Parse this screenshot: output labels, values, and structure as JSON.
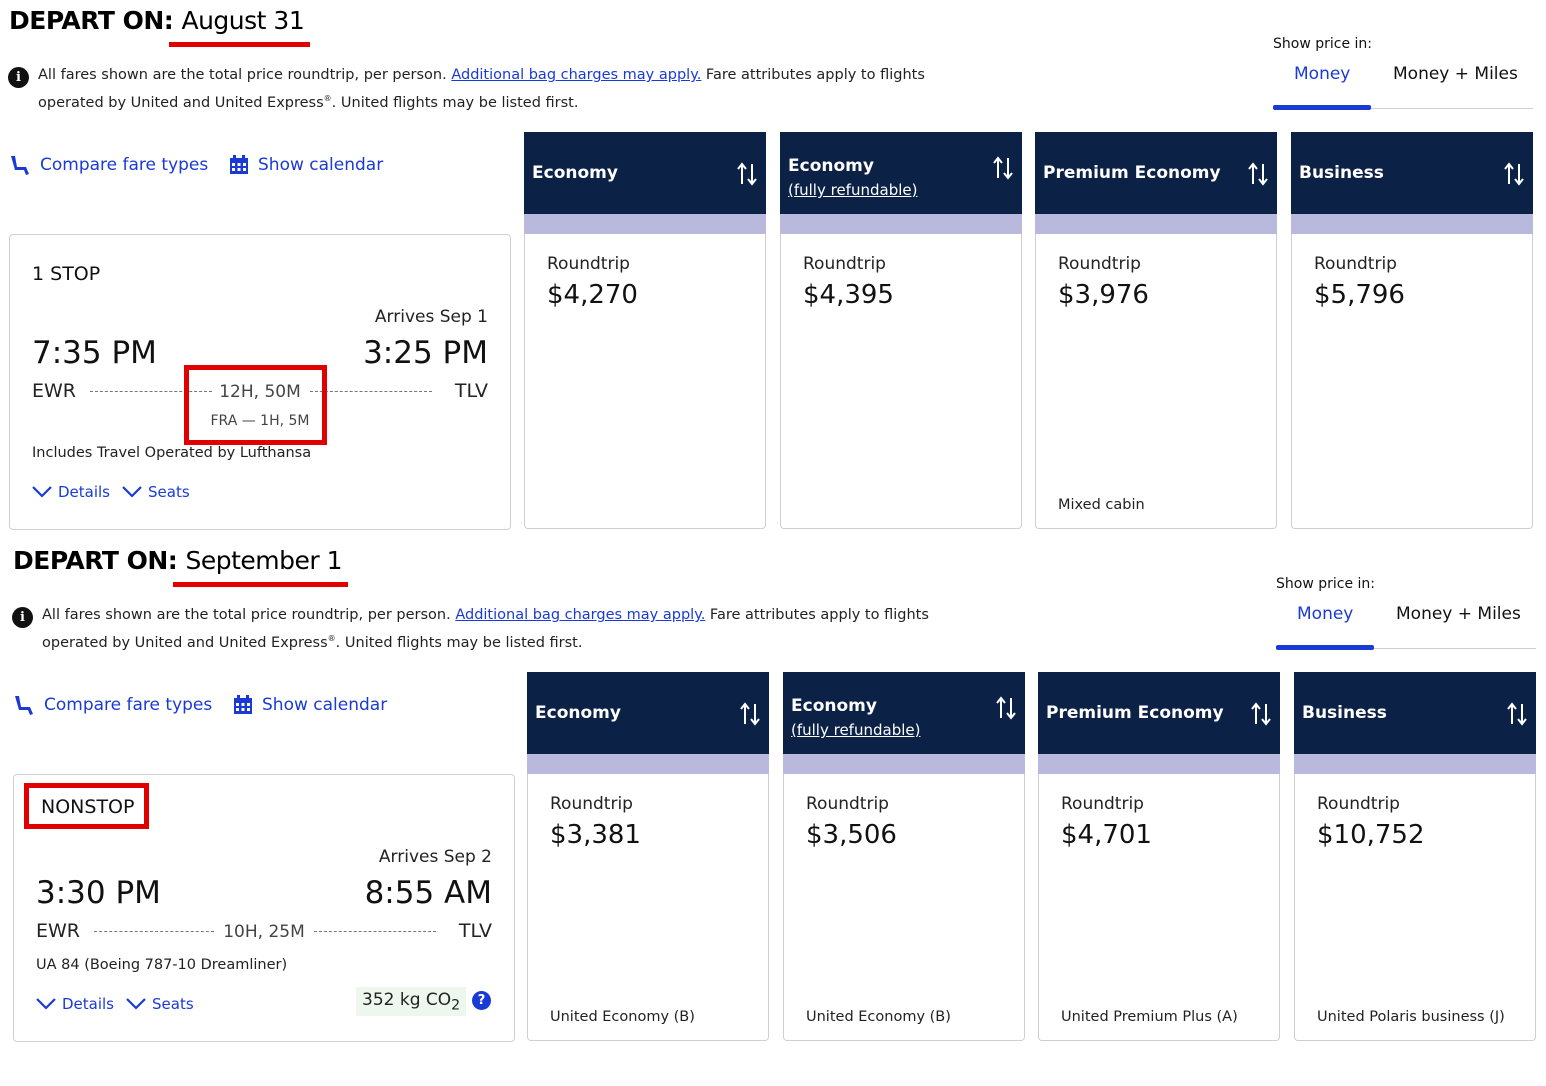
{
  "sections": [
    {
      "depart_label": "DEPART ON:",
      "depart_date": "August 31",
      "info": {
        "text1": "All fares shown are the total price roundtrip, per person. ",
        "link": "Additional bag charges may apply.",
        "text2": " Fare attributes apply to flights operated by United and United Express",
        "reg": "®",
        "text3": ". United flights may be listed first."
      },
      "price_toggle": {
        "label": "Show price in:",
        "money": "Money",
        "money_miles": "Money + Miles"
      },
      "tools": {
        "compare": "Compare fare types",
        "calendar": "Show calendar"
      },
      "flight": {
        "stops": "1 STOP",
        "arrives": "Arrives Sep 1",
        "dep_time": "7:35 PM",
        "arr_time": "3:25 PM",
        "dep_airport": "EWR",
        "arr_airport": "TLV",
        "duration": "12H, 50M",
        "layover": "FRA — 1H, 5M",
        "operated": "Includes Travel Operated by Lufthansa",
        "details": "Details",
        "seats": "Seats"
      },
      "fares": [
        {
          "name": "Economy",
          "sub": "",
          "roundtrip": "Roundtrip",
          "price": "$4,270",
          "cabin": ""
        },
        {
          "name": "Economy",
          "sub": "(fully refundable)",
          "roundtrip": "Roundtrip",
          "price": "$4,395",
          "cabin": ""
        },
        {
          "name": "Premium Economy",
          "sub": "",
          "roundtrip": "Roundtrip",
          "price": "$3,976",
          "cabin": "Mixed cabin"
        },
        {
          "name": "Business",
          "sub": "",
          "roundtrip": "Roundtrip",
          "price": "$5,796",
          "cabin": ""
        }
      ]
    },
    {
      "depart_label": "DEPART ON:",
      "depart_date": "September 1",
      "info": {
        "text1": "All fares shown are the total price roundtrip, per person. ",
        "link": "Additional bag charges may apply.",
        "text2": " Fare attributes apply to flights operated by United and United Express",
        "reg": "®",
        "text3": ". United flights may be listed first."
      },
      "price_toggle": {
        "label": "Show price in:",
        "money": "Money",
        "money_miles": "Money + Miles"
      },
      "tools": {
        "compare": "Compare fare types",
        "calendar": "Show calendar"
      },
      "flight": {
        "stops": "NONSTOP",
        "arrives": "Arrives Sep 2",
        "dep_time": "3:30 PM",
        "arr_time": "8:55 AM",
        "dep_airport": "EWR",
        "arr_airport": "TLV",
        "duration": "10H, 25M",
        "aircraft": "UA 84 (Boeing 787-10 Dreamliner)",
        "details": "Details",
        "seats": "Seats",
        "co2_value": "352 kg CO",
        "co2_sub": "2",
        "help": "?"
      },
      "fares": [
        {
          "name": "Economy",
          "sub": "",
          "roundtrip": "Roundtrip",
          "price": "$3,381",
          "cabin": "United Economy (B)"
        },
        {
          "name": "Economy",
          "sub": "(fully refundable)",
          "roundtrip": "Roundtrip",
          "price": "$3,506",
          "cabin": "United Economy (B)"
        },
        {
          "name": "Premium Economy",
          "sub": "",
          "roundtrip": "Roundtrip",
          "price": "$4,701",
          "cabin": "United Premium Plus (A)"
        },
        {
          "name": "Business",
          "sub": "",
          "roundtrip": "Roundtrip",
          "price": "$10,752",
          "cabin": "United Polaris business (J)"
        }
      ]
    }
  ],
  "colors": {
    "brand_blue": "#1a3ad6",
    "header_navy": "#0c2146",
    "band_lavender": "#b8b9dc",
    "annotation_red": "#e10000"
  },
  "icons": {
    "info": "info-icon",
    "compare": "seat-icon",
    "calendar": "calendar-icon",
    "sort": "sort-arrows-icon",
    "chevron": "chevron-down-icon"
  }
}
